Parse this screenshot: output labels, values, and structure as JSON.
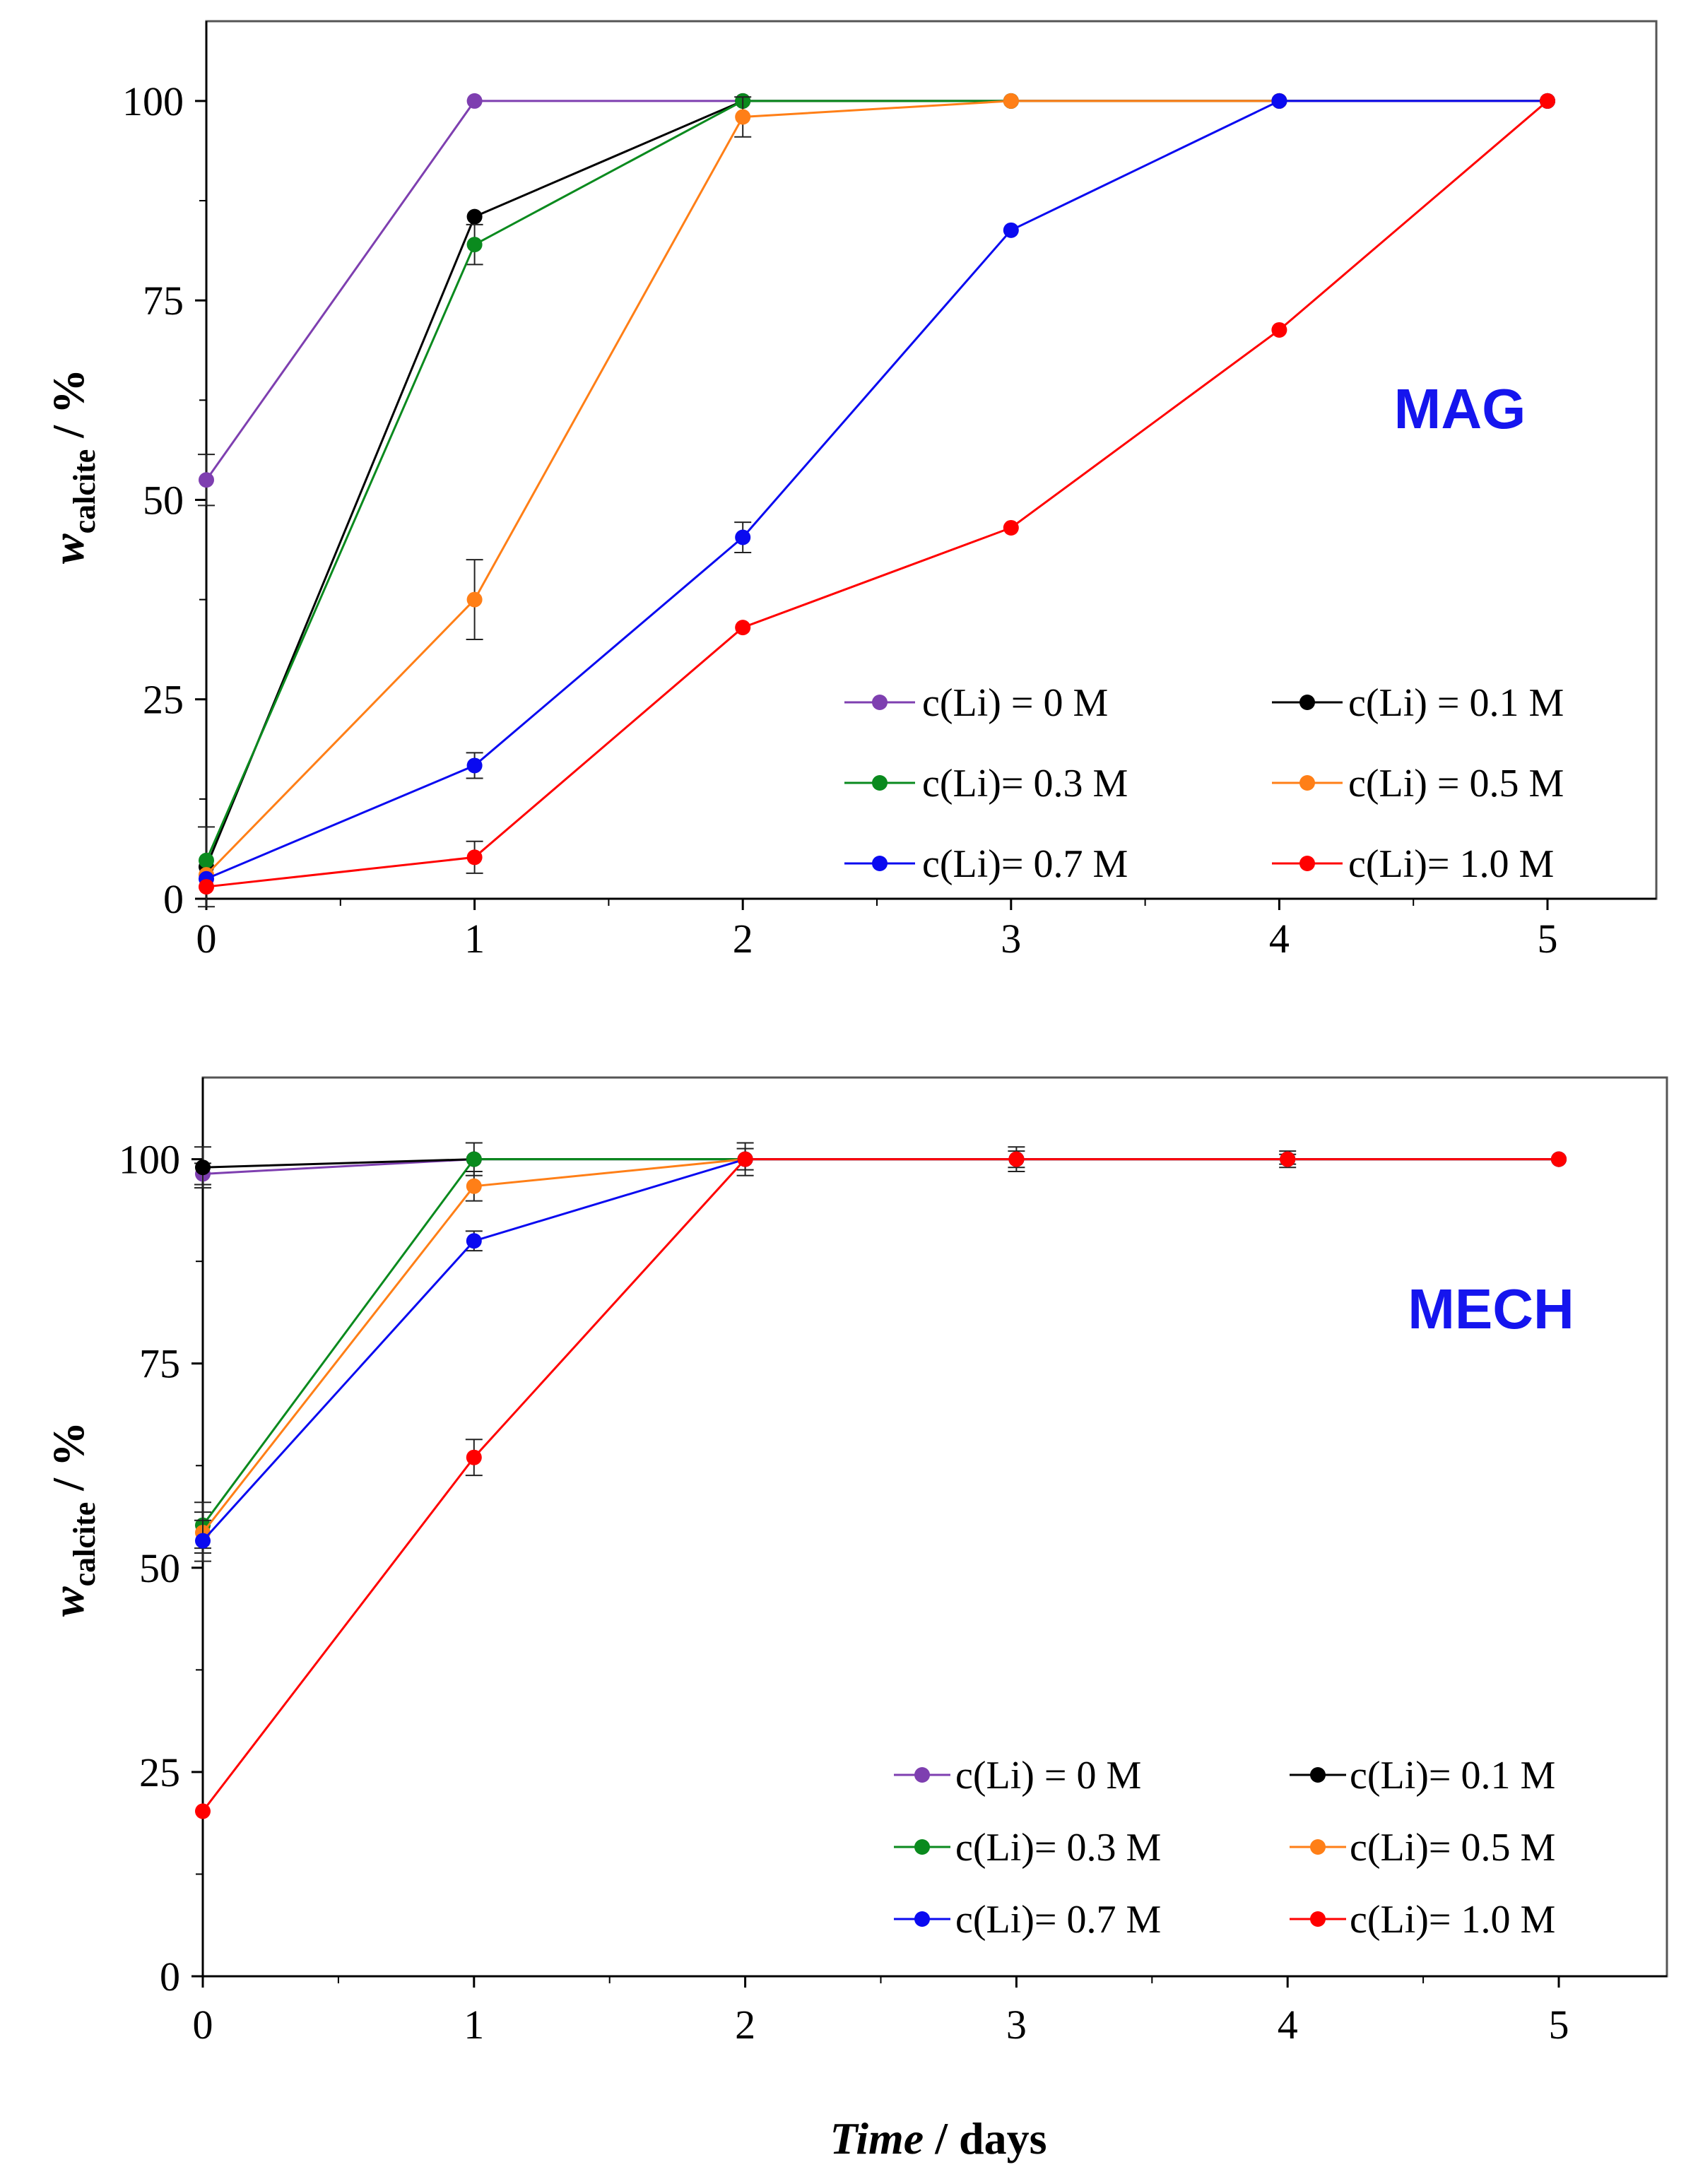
{
  "chart_data": [
    {
      "type": "line",
      "panel_label": "MAG",
      "x": [
        0,
        1,
        2,
        3,
        4,
        5
      ],
      "xlim": [
        0,
        5.4
      ],
      "ylim": [
        0,
        110
      ],
      "x_ticks": [
        "0",
        "1",
        "2",
        "3",
        "4",
        "5"
      ],
      "y_ticks": [
        "0",
        "25",
        "50",
        "75",
        "100"
      ],
      "ylabel": {
        "main": "w",
        "sub": "calcite",
        "unit": " / %"
      },
      "xlabel": "",
      "legend_position": "bottom-right",
      "series": [
        {
          "name": "c(Li) = 0 M",
          "color": "#7e3fb0",
          "x": [
            0,
            1,
            2,
            3,
            4,
            5
          ],
          "values": [
            52.5,
            100,
            100,
            100,
            100,
            100
          ],
          "errors": [
            3.2,
            0,
            0,
            0,
            0,
            0
          ]
        },
        {
          "name": "c(Li) = 0.1 M",
          "color": "#000000",
          "x": [
            0,
            1,
            2,
            3,
            4,
            5
          ],
          "values": [
            4,
            85.5,
            100,
            100,
            100,
            100
          ],
          "errors": [
            5,
            0,
            0,
            0,
            0,
            0
          ]
        },
        {
          "name": "c(Li)= 0.3 M",
          "color": "#0a8a1e",
          "x": [
            0,
            1,
            2,
            3,
            4,
            5
          ],
          "values": [
            4.8,
            82,
            100,
            100,
            100,
            100
          ],
          "errors": [
            0,
            2.5,
            0,
            0,
            0,
            0
          ]
        },
        {
          "name": "c(Li) = 0.5 M",
          "color": "#ff7f17",
          "x": [
            0,
            1,
            2,
            3,
            4,
            5
          ],
          "values": [
            3,
            37.5,
            98,
            100,
            100,
            100
          ],
          "errors": [
            0,
            5,
            2.5,
            0,
            0,
            0
          ]
        },
        {
          "name": "c(Li)= 0.7 M",
          "color": "#0a0af0",
          "x": [
            0,
            1,
            2,
            3,
            4,
            5
          ],
          "values": [
            2.5,
            16.7,
            45.3,
            83.8,
            100,
            100
          ],
          "errors": [
            0,
            1.6,
            1.9,
            0,
            0,
            0
          ]
        },
        {
          "name": "c(Li)= 1.0 M",
          "color": "#ff0000",
          "x": [
            0,
            1,
            2,
            3,
            4,
            5
          ],
          "values": [
            1.5,
            5.2,
            34,
            46.5,
            71.3,
            100
          ],
          "errors": [
            0,
            2,
            0,
            0,
            0,
            0
          ]
        }
      ]
    },
    {
      "type": "line",
      "panel_label": "MECH",
      "x": [
        0,
        1,
        2,
        3,
        4,
        5
      ],
      "xlim": [
        0,
        5.4
      ],
      "ylim": [
        0,
        110
      ],
      "x_ticks": [
        "0",
        "1",
        "2",
        "3",
        "4",
        "5"
      ],
      "y_ticks": [
        "0",
        "25",
        "50",
        "75",
        "100"
      ],
      "ylabel": {
        "main": "w",
        "sub": "calcite",
        "unit": " / %"
      },
      "xlabel": {
        "main": "Time",
        "unit": " / days"
      },
      "legend_position": "bottom-right",
      "series": [
        {
          "name": "c(Li) = 0 M",
          "color": "#7e3fb0",
          "x": [
            0,
            1,
            2,
            3,
            4,
            5
          ],
          "values": [
            98.2,
            100,
            100,
            100,
            100,
            100
          ],
          "errors": [
            1.3,
            0,
            0,
            0,
            0,
            0
          ]
        },
        {
          "name": "c(Li)= 0.1 M",
          "color": "#000000",
          "x": [
            0,
            1,
            2,
            3,
            4,
            5
          ],
          "values": [
            99,
            100,
            100,
            100,
            100,
            100
          ],
          "errors": [
            2.5,
            2,
            2,
            1.5,
            1,
            0
          ]
        },
        {
          "name": "c(Li)= 0.3 M",
          "color": "#0a8a1e",
          "x": [
            0,
            1,
            2,
            3,
            4,
            5
          ],
          "values": [
            55.2,
            100,
            100,
            100,
            100,
            100
          ],
          "errors": [
            2.8,
            0,
            0,
            0,
            0,
            0
          ]
        },
        {
          "name": "c(Li)= 0.5 M",
          "color": "#ff7f17",
          "x": [
            0,
            1,
            2,
            3,
            4,
            5
          ],
          "values": [
            54.3,
            96.7,
            100,
            100,
            100,
            100
          ],
          "errors": [
            2.5,
            1.8,
            0,
            0,
            0,
            0
          ]
        },
        {
          "name": "c(Li)= 0.7 M",
          "color": "#0a0af0",
          "x": [
            0,
            1,
            2,
            3,
            4,
            5
          ],
          "values": [
            53.3,
            90,
            100,
            100,
            100,
            100
          ],
          "errors": [
            2.5,
            1.2,
            0,
            0,
            0,
            0
          ]
        },
        {
          "name": "c(Li)= 1.0 M",
          "color": "#ff0000",
          "x": [
            0,
            1,
            2,
            3,
            4,
            5
          ],
          "values": [
            20.2,
            63.5,
            100,
            100,
            100,
            100
          ],
          "errors": [
            0,
            2.2,
            1.3,
            1,
            0.6,
            0
          ]
        }
      ]
    }
  ]
}
